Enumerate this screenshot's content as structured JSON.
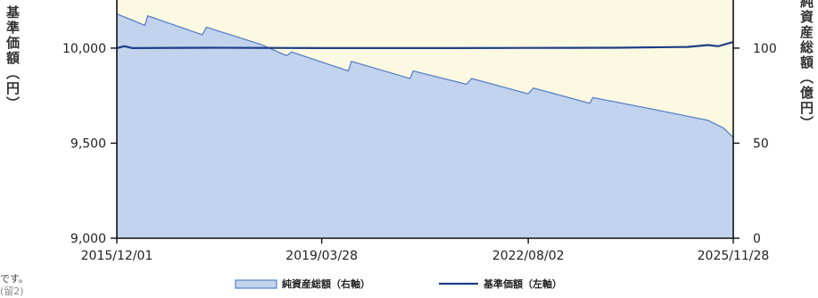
{
  "chart_data": {
    "type": "area+line",
    "ylabel_left": "基準価額（円）",
    "ylabel_right": "純資産総額（億円）",
    "x_ticks": [
      "2015/12/01",
      "2019/03/28",
      "2022/08/02",
      "2025/11/28"
    ],
    "y_left_ticks": [
      "9,000",
      "9,500",
      "10,000"
    ],
    "y_left_range": [
      9000,
      10300
    ],
    "y_right_ticks": [
      "0",
      "50",
      "100"
    ],
    "y_right_range": [
      0,
      130
    ],
    "series": [
      {
        "name": "純資産総額（右軸）",
        "axis": "right",
        "type": "area",
        "color": "#c2d3ee",
        "edge_color": "#5b82c6",
        "x": [
          "2015/12/01",
          "2016/05/15",
          "2016/06/01",
          "2017/04/20",
          "2017/05/15",
          "2018/04/01",
          "2018/09/01",
          "2018/10/01",
          "2019/09/01",
          "2019/09/20",
          "2020/09/01",
          "2020/09/20",
          "2021/08/01",
          "2021/09/01",
          "2022/08/01",
          "2022/09/01",
          "2023/08/01",
          "2023/08/20",
          "2024/08/01",
          "2025/07/01",
          "2025/10/01",
          "2025/11/28"
        ],
        "values": [
          118,
          112,
          117,
          107,
          111,
          102,
          96,
          98,
          88,
          93,
          84,
          88,
          81,
          84,
          76,
          79,
          71,
          74,
          68,
          62,
          58,
          53
        ]
      },
      {
        "name": "基準価額（左軸）",
        "axis": "left",
        "type": "line",
        "color": "#1f3e86",
        "x": [
          "2015/12/01",
          "2016/01/15",
          "2016/03/01",
          "2017/06/01",
          "2019/03/28",
          "2021/01/01",
          "2022/08/02",
          "2024/01/01",
          "2025/03/01",
          "2025/07/01",
          "2025/09/01",
          "2025/11/28"
        ],
        "values": [
          10000,
          10010,
          10000,
          10002,
          10000,
          10000,
          10001,
          10002,
          10006,
          10016,
          10010,
          10032
        ]
      }
    ],
    "background_color": "#fbf9e2"
  },
  "notes": [
    "です。",
    "(留2)"
  ]
}
